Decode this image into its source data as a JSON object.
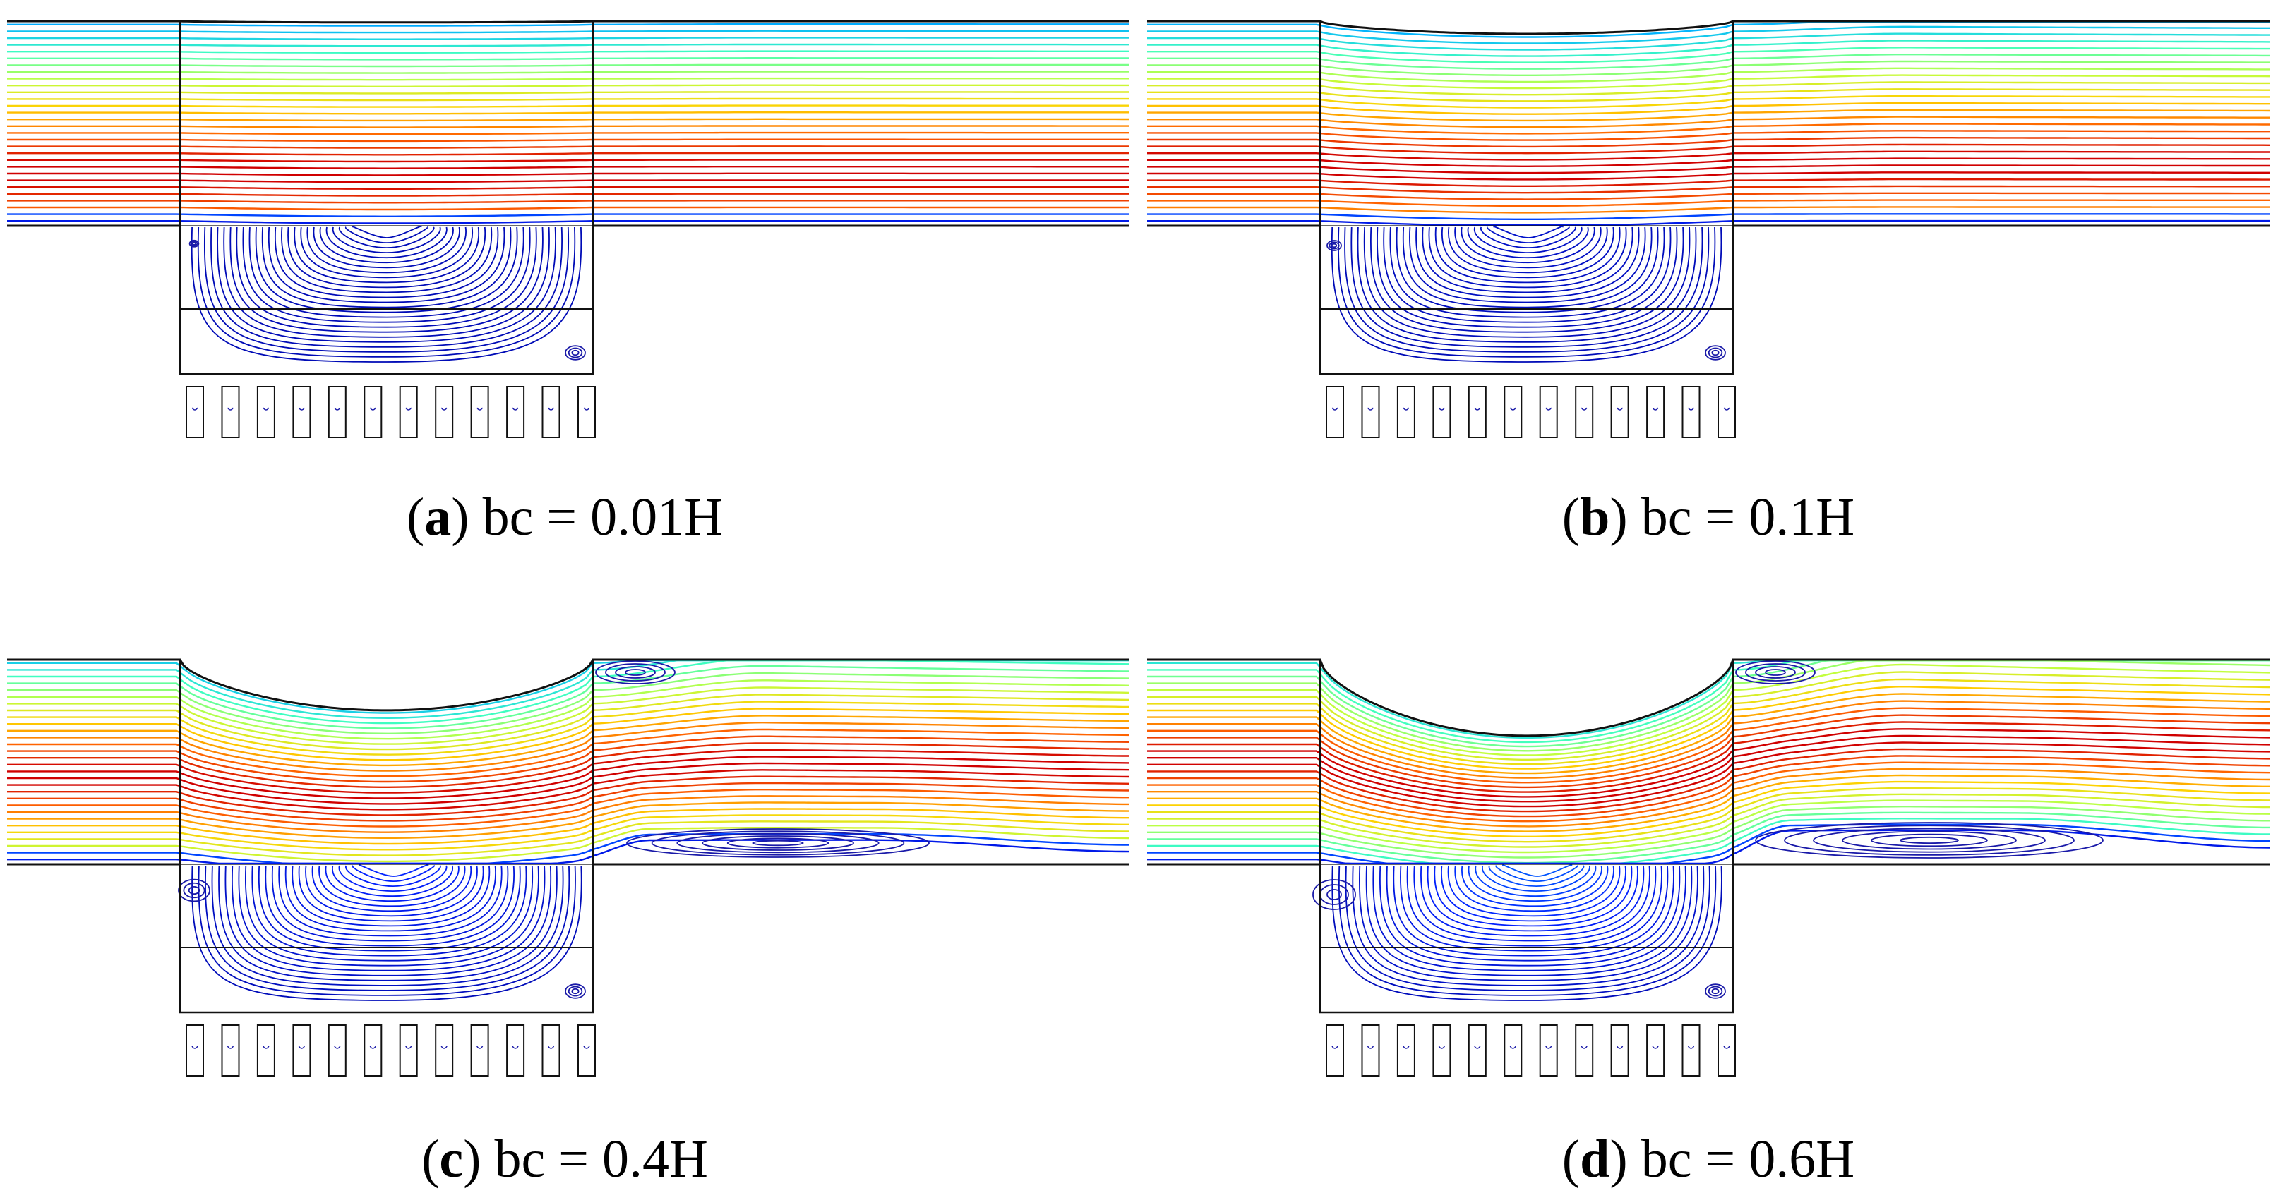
{
  "panels": [
    {
      "letter": "a",
      "label": "bc = 0.01H",
      "bc": 0.01
    },
    {
      "letter": "b",
      "label": "bc = 0.1H",
      "bc": 0.1
    },
    {
      "letter": "c",
      "label": "bc = 0.4H",
      "bc": 0.4
    },
    {
      "letter": "d",
      "label": "bc = 0.6H",
      "bc": 0.6
    }
  ],
  "colors": {
    "outline": "#111111",
    "vortex": "#1a1aa8",
    "colormap": [
      "#00008f",
      "#0020ff",
      "#00b0ff",
      "#40ffc0",
      "#c0ff40",
      "#ffd000",
      "#ff6000",
      "#d00000"
    ]
  },
  "counts": {
    "free_stream_lines": 30,
    "cavity_lines": 26,
    "fins": 12
  }
}
